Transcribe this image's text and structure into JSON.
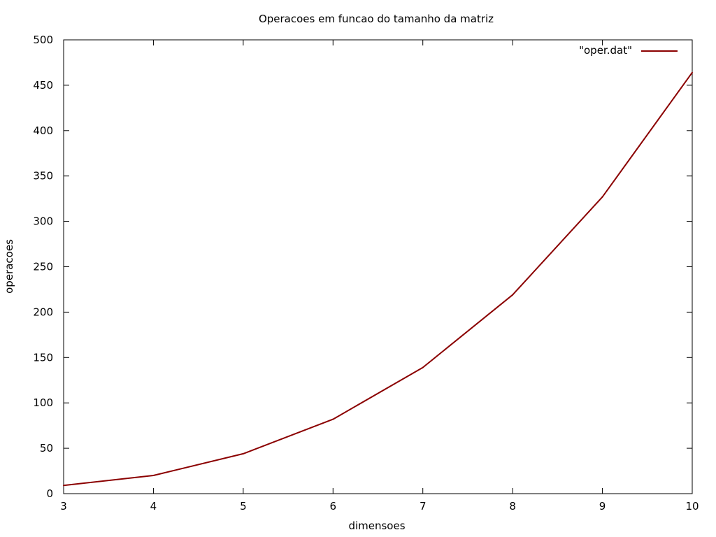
{
  "colors": {
    "series": "#8b0000",
    "frame": "#000000",
    "background": "#ffffff"
  },
  "chart_data": {
    "type": "line",
    "title": "Operacoes em funcao do tamanho da matriz",
    "xlabel": "dimensoes",
    "ylabel": "operacoes",
    "xlim": [
      3,
      10
    ],
    "ylim": [
      0,
      500
    ],
    "xticks": [
      3,
      4,
      5,
      6,
      7,
      8,
      9,
      10
    ],
    "yticks": [
      0,
      50,
      100,
      150,
      200,
      250,
      300,
      350,
      400,
      450,
      500
    ],
    "grid": false,
    "legend_position": "top-right",
    "series": [
      {
        "name": "\"oper.dat\"",
        "color": "#8b0000",
        "x": [
          3,
          4,
          5,
          6,
          7,
          8,
          9,
          10
        ],
        "y": [
          9,
          20,
          44,
          82,
          139,
          219,
          327,
          464
        ]
      }
    ]
  }
}
